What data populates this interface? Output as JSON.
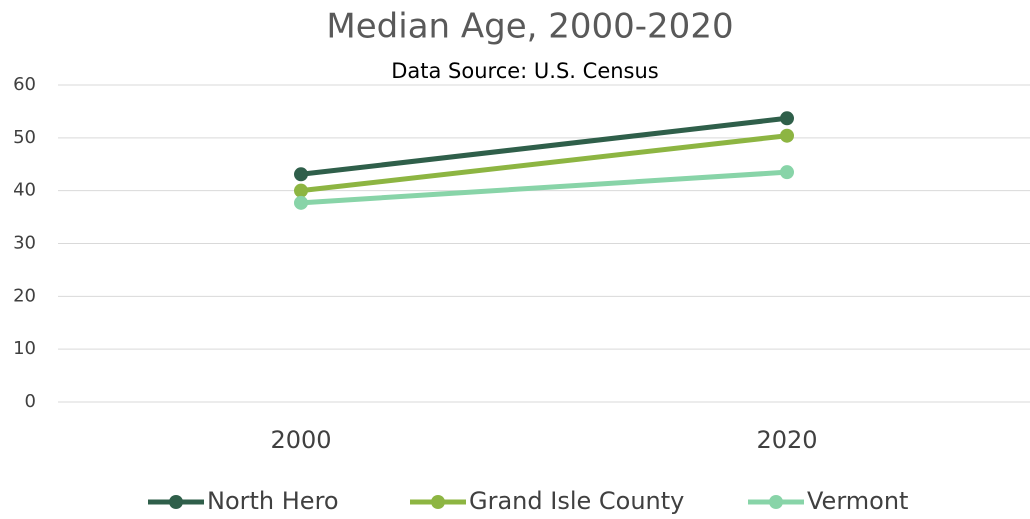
{
  "chart_data": {
    "type": "line",
    "title": "Median Age, 2000-2020",
    "subtitle": "Data Source: U.S. Census",
    "categories": [
      "2000",
      "2020"
    ],
    "series": [
      {
        "name": "North Hero",
        "color": "#2f5f4a",
        "values": [
          43.1,
          53.7
        ]
      },
      {
        "name": "Grand Isle County",
        "color": "#8db542",
        "values": [
          40.0,
          50.4
        ]
      },
      {
        "name": "Vermont",
        "color": "#88d4a8",
        "values": [
          37.7,
          43.5
        ]
      }
    ],
    "ylim": [
      0,
      60
    ],
    "yticks": [
      0,
      10,
      20,
      30,
      40,
      50,
      60
    ],
    "grid": true,
    "legend": "bottom"
  }
}
